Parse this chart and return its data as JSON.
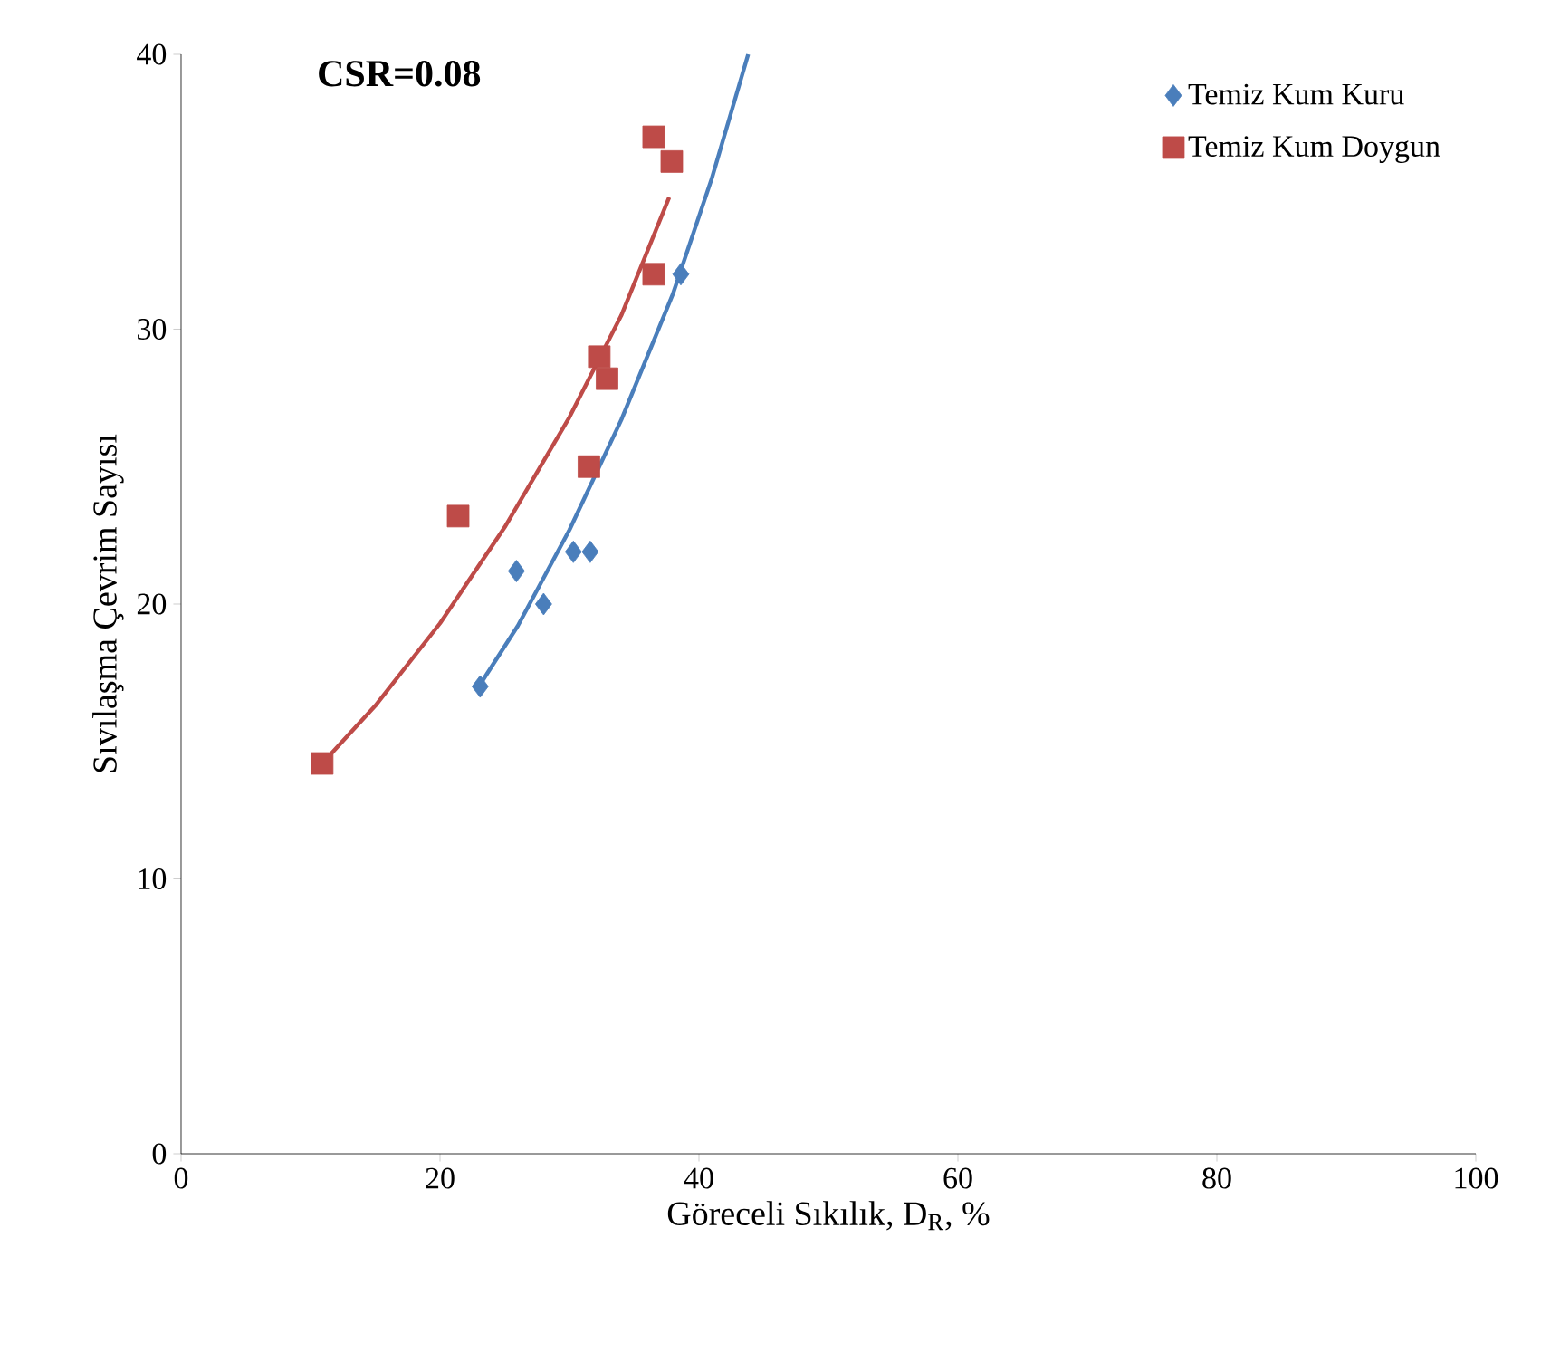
{
  "chart_data": {
    "type": "scatter",
    "xlabel": "Göreceli Sıkılık, D$_{R}$, %",
    "ylabel": "Sıvılaşma Çevrim Sayısı",
    "annotations": [
      "**CSR=0.08**"
    ],
    "xlim": [
      0,
      100
    ],
    "ylim": [
      0,
      40
    ],
    "xticks": [
      0,
      20,
      40,
      60,
      80,
      100
    ],
    "yticks": [
      0,
      10,
      20,
      30,
      40
    ],
    "grid": false,
    "legend": "top right",
    "series": [
      {
        "name": "Temiz Kum Kuru",
        "color": "#4a7ebb",
        "marker": "diamond",
        "x": [
          23.1,
          25.9,
          28.0,
          30.3,
          31.6,
          38.6
        ],
        "values": [
          17.0,
          21.2,
          20.0,
          21.9,
          21.9,
          32.0
        ]
      },
      {
        "name": "Temiz Kum Doygun",
        "color": "#be4b48",
        "marker": "square",
        "x": [
          10.9,
          21.4,
          31.5,
          32.3,
          32.9,
          36.5,
          36.5,
          37.9
        ],
        "values": [
          14.2,
          23.2,
          25.0,
          29.0,
          28.2,
          32.0,
          37.0,
          36.1
        ]
      },
      {
        "type": "line",
        "color": "#4a7ebb",
        "marker": "none",
        "x": [
          23,
          26,
          30,
          34,
          38,
          41,
          43.8
        ],
        "values": [
          17.0,
          19.2,
          22.7,
          26.7,
          31.3,
          35.5,
          40.0
        ]
      },
      {
        "type": "line",
        "color": "#be4b48",
        "marker": "none",
        "x": [
          10.9,
          15,
          20,
          25,
          30,
          34,
          37.7
        ],
        "values": [
          14.2,
          16.3,
          19.3,
          22.8,
          26.8,
          30.5,
          34.8
        ]
      }
    ]
  }
}
